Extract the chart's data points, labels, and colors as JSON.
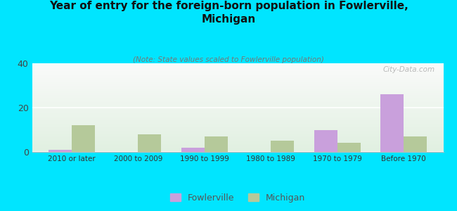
{
  "title": "Year of entry for the foreign-born population in Fowlerville,\nMichigan",
  "subtitle": "(Note: State values scaled to Fowlerville population)",
  "categories": [
    "2010 or later",
    "2000 to 2009",
    "1990 to 1999",
    "1980 to 1989",
    "1970 to 1979",
    "Before 1970"
  ],
  "fowlerville": [
    1,
    0,
    2,
    0,
    10,
    26
  ],
  "michigan": [
    12,
    8,
    7,
    5,
    4,
    7
  ],
  "fowlerville_color": "#c9a0dc",
  "michigan_color": "#b5c99a",
  "background_color": "#00e5ff",
  "ylim": [
    0,
    40
  ],
  "yticks": [
    0,
    20,
    40
  ],
  "bar_width": 0.35,
  "watermark": "City-Data.com"
}
